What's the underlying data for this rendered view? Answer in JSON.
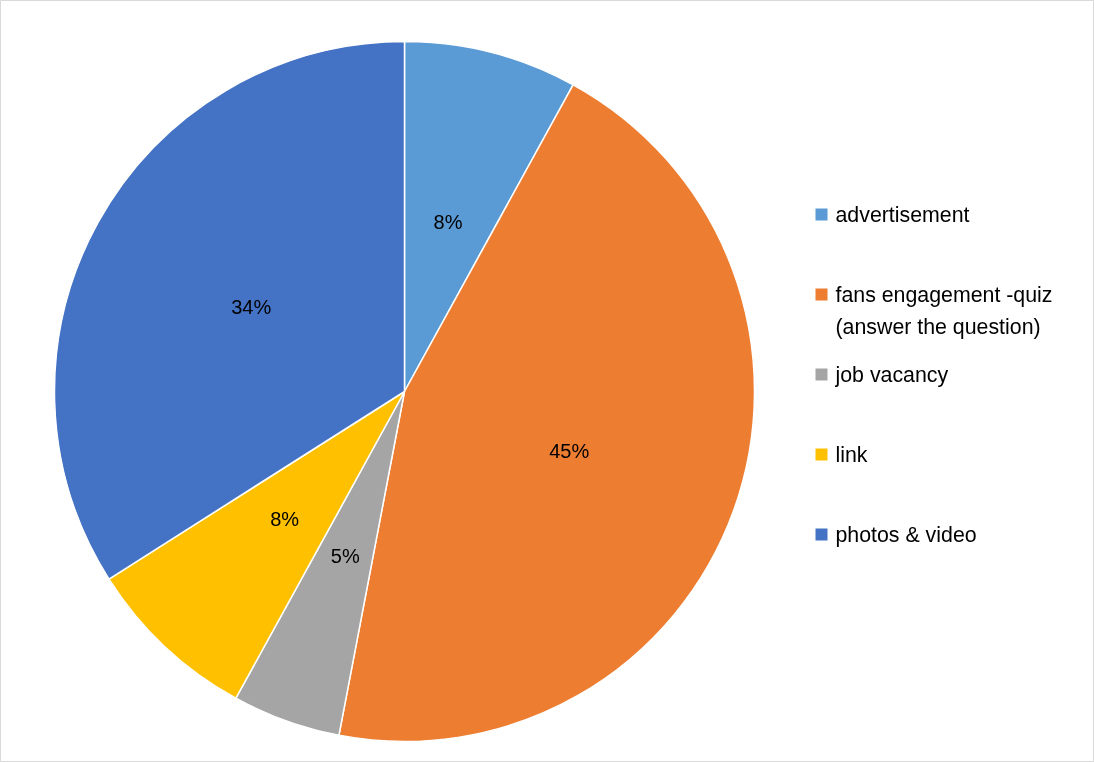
{
  "chart_data": {
    "type": "pie",
    "categories": [
      "advertisement",
      "fans engagement -quiz (answer the question)",
      "job vacancy",
      "link",
      "photos & video"
    ],
    "values": [
      8,
      45,
      5,
      8,
      34
    ],
    "colors": [
      "#5b9bd5",
      "#ed7d31",
      "#a5a5a5",
      "#ffc000",
      "#4472c4"
    ],
    "value_labels": [
      "8%",
      "45%",
      "5%",
      "8%",
      "34%"
    ],
    "legend": "right"
  }
}
